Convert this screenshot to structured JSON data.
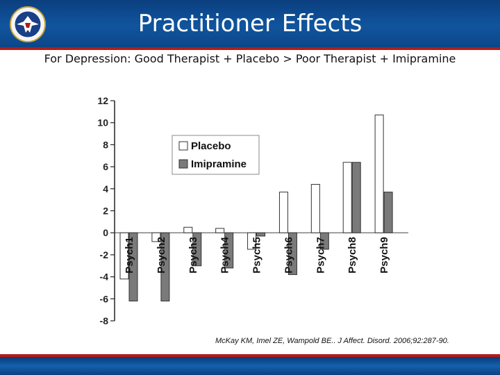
{
  "slide": {
    "title": "Practitioner Effects",
    "subtitle": "For Depression: Good Therapist + Placebo > Poor Therapist + Imipramine",
    "citation": "McKay KM, Imel ZE, Wampold BE.. J Affect. Disord. 2006;92:287-90."
  },
  "colors": {
    "header": "#0f4f97",
    "accent": "#b31b1b",
    "placebo": "#ffffff",
    "imipramine": "#7a7a7a"
  },
  "chart_data": {
    "type": "bar",
    "categories": [
      "Psych1",
      "Psych2",
      "Psych3",
      "Psych4",
      "Psych5",
      "Psych6",
      "Psych7",
      "Psych8",
      "Psych9"
    ],
    "series": [
      {
        "name": "Placebo",
        "values": [
          -4.2,
          -0.8,
          0.5,
          0.4,
          -1.5,
          3.7,
          4.4,
          6.4,
          10.7
        ]
      },
      {
        "name": "Imipramine",
        "values": [
          -6.2,
          -6.2,
          -3.0,
          -3.2,
          -0.3,
          -3.8,
          -1.5,
          6.4,
          3.7
        ]
      }
    ],
    "yticks": [
      12,
      10,
      8,
      6,
      4,
      2,
      0,
      -2,
      -4,
      -6,
      -8
    ],
    "ylim": [
      -8,
      12
    ],
    "legend": "upper-left",
    "title": "",
    "xlabel": "",
    "ylabel": ""
  }
}
